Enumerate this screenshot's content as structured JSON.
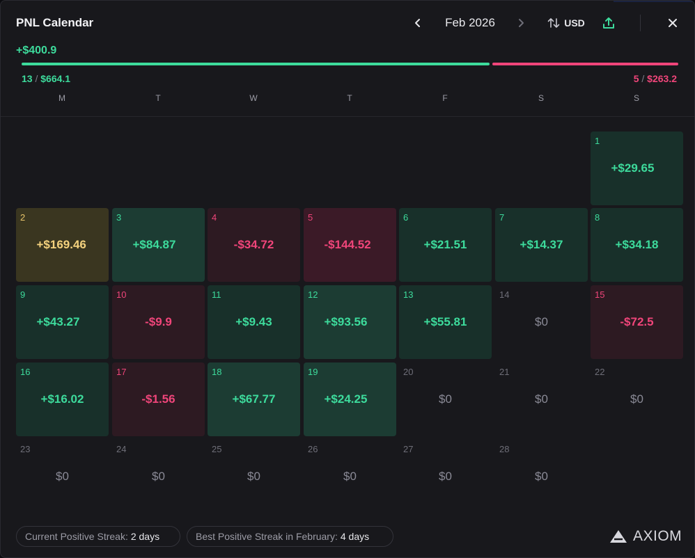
{
  "header": {
    "title": "PNL Calendar",
    "month": "Feb 2026",
    "currency": "USD"
  },
  "summary": {
    "total": "+$400.9",
    "win_count": "13",
    "win_amount": "$664.1",
    "loss_count": "5",
    "loss_amount": "$263.2",
    "win_share": 0.716
  },
  "weekdays": [
    "M",
    "T",
    "W",
    "T",
    "F",
    "S",
    "S"
  ],
  "days": [
    {
      "day": "1",
      "value": "+$29.65",
      "kind": "pos",
      "wrap": true
    },
    {
      "day": "2",
      "value": "+$169.46",
      "kind": "gold",
      "wrap": true
    },
    {
      "day": "3",
      "value": "+$84.87",
      "kind": "pos2",
      "wrap": true
    },
    {
      "day": "4",
      "value": "-$34.72",
      "kind": "neg",
      "wrap": false
    },
    {
      "day": "5",
      "value": "-$144.52",
      "kind": "neg2",
      "wrap": true
    },
    {
      "day": "6",
      "value": "+$21.51",
      "kind": "pos",
      "wrap": false
    },
    {
      "day": "7",
      "value": "+$14.37",
      "kind": "pos",
      "wrap": false
    },
    {
      "day": "8",
      "value": "+$34.18",
      "kind": "pos",
      "wrap": false
    },
    {
      "day": "9",
      "value": "+$43.27",
      "kind": "pos",
      "wrap": true
    },
    {
      "day": "10",
      "value": "-$9.9",
      "kind": "neg",
      "wrap": false
    },
    {
      "day": "11",
      "value": "+$9.43",
      "kind": "pos",
      "wrap": false
    },
    {
      "day": "12",
      "value": "+$93.56",
      "kind": "pos2",
      "wrap": true
    },
    {
      "day": "13",
      "value": "+$55.81",
      "kind": "pos",
      "wrap": false
    },
    {
      "day": "14",
      "value": "$0",
      "kind": "zero",
      "wrap": false
    },
    {
      "day": "15",
      "value": "-$72.5",
      "kind": "neg",
      "wrap": false
    },
    {
      "day": "16",
      "value": "+$16.02",
      "kind": "pos",
      "wrap": false
    },
    {
      "day": "17",
      "value": "-$1.56",
      "kind": "neg",
      "wrap": false
    },
    {
      "day": "18",
      "value": "+$67.77",
      "kind": "pos2",
      "wrap": false
    },
    {
      "day": "19",
      "value": "+$24.25",
      "kind": "pos2",
      "wrap": true
    },
    {
      "day": "20",
      "value": "$0",
      "kind": "zero",
      "wrap": false
    },
    {
      "day": "21",
      "value": "$0",
      "kind": "zero",
      "wrap": false
    },
    {
      "day": "22",
      "value": "$0",
      "kind": "zero",
      "wrap": false
    },
    {
      "day": "23",
      "value": "$0",
      "kind": "zero",
      "wrap": false
    },
    {
      "day": "24",
      "value": "$0",
      "kind": "zero",
      "wrap": false
    },
    {
      "day": "25",
      "value": "$0",
      "kind": "zero",
      "wrap": false
    },
    {
      "day": "26",
      "value": "$0",
      "kind": "zero",
      "wrap": false
    },
    {
      "day": "27",
      "value": "$0",
      "kind": "zero",
      "wrap": false
    },
    {
      "day": "28",
      "value": "$0",
      "kind": "zero",
      "wrap": false
    }
  ],
  "footer": {
    "current_streak_label": "Current Positive Streak:",
    "current_streak_value": "2 days",
    "best_streak_label": "Best Positive Streak in February:",
    "best_streak_value": "4 days"
  },
  "brand": "AXIOM",
  "colors": {
    "positive": "#3ddb9c",
    "negative": "#f0457a",
    "highlight": "#f4d27e"
  },
  "icons": [
    "chevron-left-icon",
    "chevron-right-icon",
    "sort-arrows-icon",
    "share-upload-icon",
    "close-icon",
    "axiom-logo-icon"
  ]
}
